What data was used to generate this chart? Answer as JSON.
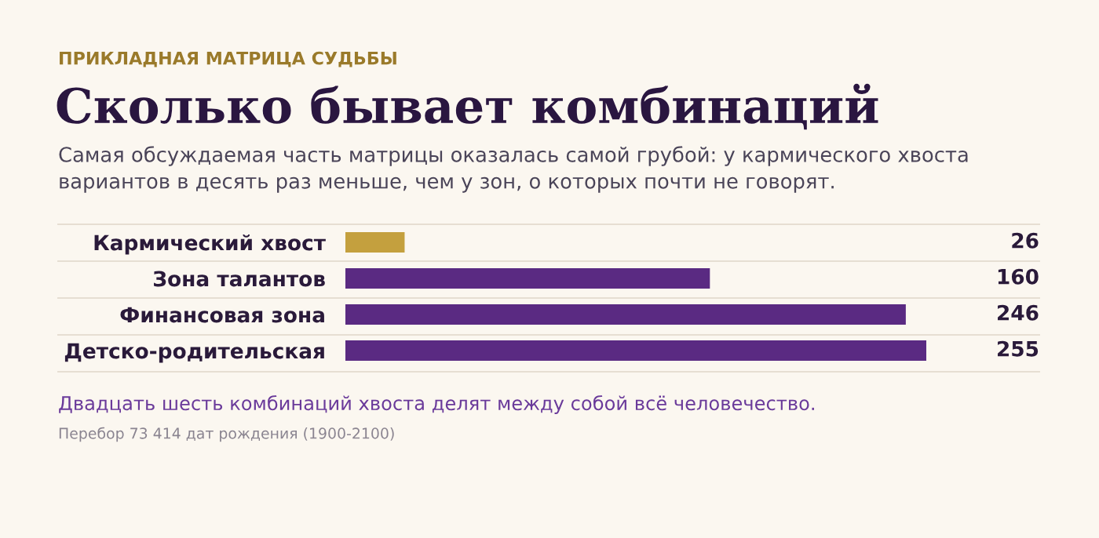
{
  "chart_data": {
    "type": "bar",
    "orientation": "horizontal",
    "title": "Сколько бывает комбинаций",
    "subtitle": "Самая обсуждаемая часть матрицы оказалась самой грубой: у кармического хвоста\nвариантов в десять раз меньше, чем у зон, о которых почти не говорят.",
    "annotations": [
      "ПРИКЛАДНАЯ МАТРИЦА СУДЬБЫ",
      "Двадцать шесть комбинаций хвоста делят между собой всё человечество.",
      "Перебор 73 414 дат рождения (1900-2100)"
    ],
    "categories": [
      "Кармический хвост",
      "Зона талантов",
      "Финансовая зона",
      "Детско-родительская"
    ],
    "values": [
      26,
      160,
      246,
      255
    ],
    "colors": [
      "#c4a03e",
      "#5a2a82",
      "#5a2a82",
      "#5a2a82"
    ],
    "data_labels": true,
    "grid": false,
    "legend": false
  }
}
